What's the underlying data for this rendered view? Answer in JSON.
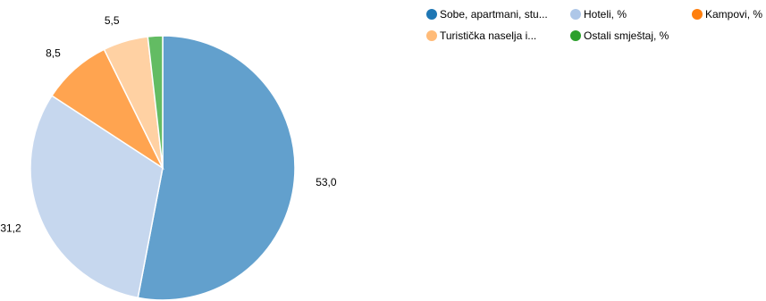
{
  "chart_data": {
    "type": "pie",
    "categories": [
      "Sobe, apartmani, stu...",
      "Hoteli, %",
      "Kampovi, %",
      "Turistička naselja i...",
      "Ostali smještaj, %"
    ],
    "values": [
      53.0,
      31.2,
      8.5,
      5.5,
      1.8
    ],
    "value_labels": [
      "53,0",
      "31,2",
      "8,5",
      "5,5",
      ""
    ],
    "colors": [
      "#1f77b4",
      "#aec7e8",
      "#ff7f0e",
      "#ffbb78",
      "#2ca02c"
    ],
    "slice_colors": [
      "#62a0cd",
      "#c6d7ee",
      "#ffa450",
      "#ffd1a3",
      "#63bc63"
    ],
    "legend_position": "top-right",
    "title": ""
  }
}
